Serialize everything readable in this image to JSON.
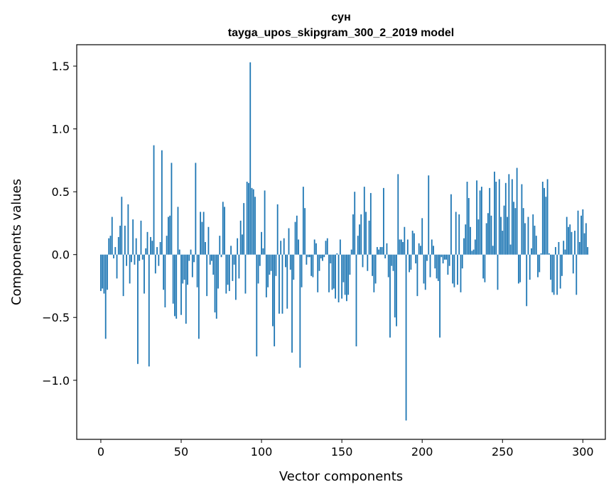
{
  "chart_data": {
    "type": "bar",
    "title": "сун",
    "subtitle": "tayga_upos_skipgram_300_2_2019 model",
    "xlabel": "Vector components",
    "ylabel": "Components values",
    "xlim": [
      -15,
      314
    ],
    "ylim": [
      -1.47,
      1.67
    ],
    "xticks": [
      0,
      50,
      100,
      150,
      200,
      250,
      300
    ],
    "xtick_labels": [
      "0",
      "50",
      "100",
      "150",
      "200",
      "250",
      "300"
    ],
    "yticks": [
      -1.0,
      -0.5,
      0.0,
      0.5,
      1.0,
      1.5
    ],
    "ytick_labels": [
      "−1.0",
      "−0.5",
      "0.0",
      "0.5",
      "1.0",
      "1.5"
    ],
    "grid": false,
    "bar_color": "#1f77b4",
    "values": [
      -0.29,
      -0.27,
      -0.31,
      -0.67,
      -0.28,
      0.13,
      0.15,
      0.3,
      -0.03,
      0.06,
      -0.19,
      0.14,
      0.23,
      0.46,
      -0.33,
      0.23,
      -0.09,
      0.4,
      -0.23,
      -0.06,
      0.28,
      -0.08,
      0.13,
      -0.87,
      -0.05,
      0.27,
      -0.04,
      -0.31,
      0.05,
      0.18,
      -0.89,
      0.14,
      0.11,
      0.87,
      -0.15,
      0.06,
      -0.09,
      0.1,
      0.83,
      -0.28,
      -0.42,
      0.15,
      0.3,
      0.31,
      0.73,
      -0.39,
      -0.49,
      -0.51,
      0.38,
      0.04,
      -0.48,
      -0.23,
      -0.2,
      -0.55,
      -0.24,
      -0.05,
      0.04,
      -0.18,
      -0.06,
      0.73,
      -0.26,
      -0.67,
      0.34,
      0.26,
      0.34,
      0.1,
      -0.33,
      0.22,
      -0.08,
      -0.05,
      -0.16,
      -0.46,
      -0.51,
      -0.27,
      0.15,
      -0.02,
      0.42,
      0.38,
      -0.31,
      -0.24,
      -0.29,
      0.07,
      -0.21,
      -0.08,
      -0.36,
      0.13,
      -0.19,
      0.27,
      0.16,
      0.41,
      -0.31,
      0.58,
      0.57,
      1.53,
      0.53,
      0.52,
      0.46,
      -0.81,
      -0.23,
      -0.09,
      0.18,
      0.05,
      0.51,
      -0.34,
      -0.26,
      -0.16,
      -0.13,
      -0.57,
      -0.73,
      -0.17,
      0.4,
      -0.47,
      0.11,
      -0.47,
      0.13,
      -0.1,
      -0.43,
      0.21,
      -0.12,
      -0.78,
      -0.2,
      0.26,
      0.31,
      0.12,
      -0.9,
      -0.26,
      0.54,
      0.37,
      -0.08,
      -0.02,
      -0.02,
      -0.17,
      -0.18,
      0.12,
      0.09,
      -0.3,
      -0.13,
      -0.03,
      -0.05,
      -0.02,
      0.11,
      0.13,
      -0.3,
      -0.07,
      -0.28,
      -0.27,
      -0.35,
      0.01,
      -0.38,
      0.12,
      -0.35,
      -0.22,
      -0.32,
      -0.37,
      -0.32,
      -0.16,
      0.04,
      0.32,
      0.5,
      -0.73,
      0.15,
      0.24,
      0.32,
      -0.1,
      0.54,
      0.34,
      -0.13,
      0.27,
      0.49,
      -0.17,
      -0.3,
      -0.23,
      0.06,
      0.04,
      0.06,
      0.06,
      0.53,
      -0.03,
      0.09,
      -0.18,
      -0.66,
      -0.09,
      -0.13,
      -0.5,
      -0.57,
      0.64,
      0.12,
      0.12,
      0.1,
      0.22,
      -1.32,
      0.12,
      -0.14,
      -0.12,
      0.19,
      0.17,
      -0.07,
      -0.33,
      0.09,
      0.07,
      0.29,
      -0.23,
      -0.28,
      -0.05,
      0.63,
      -0.18,
      0.12,
      0.07,
      -0.11,
      -0.19,
      -0.21,
      -0.66,
      -0.02,
      -0.07,
      -0.04,
      -0.04,
      -0.16,
      -0.09,
      0.48,
      -0.23,
      -0.26,
      0.34,
      -0.24,
      0.32,
      -0.3,
      -0.11,
      0.13,
      0.24,
      0.58,
      0.45,
      0.22,
      0.03,
      0.04,
      0.12,
      0.59,
      0.28,
      0.51,
      0.54,
      -0.19,
      -0.22,
      0.25,
      0.33,
      0.53,
      0.31,
      0.07,
      0.66,
      0.58,
      -0.28,
      0.6,
      0.3,
      0.19,
      0.39,
      0.57,
      0.3,
      0.64,
      0.08,
      0.6,
      0.42,
      0.37,
      0.69,
      -0.23,
      -0.22,
      0.56,
      0.37,
      0.25,
      -0.41,
      0.3,
      -0.2,
      0.05,
      0.32,
      0.23,
      0.15,
      -0.18,
      -0.14,
      0.01,
      0.58,
      0.53,
      0.46,
      0.6,
      0.01,
      -0.2,
      -0.3,
      -0.32,
      0.06,
      -0.32,
      0.1,
      -0.27,
      -0.17,
      0.11,
      0.04,
      0.3,
      0.22,
      0.24,
      0.18,
      -0.15,
      0.19,
      -0.32,
      0.35,
      0.1,
      0.31,
      0.36,
      0.17,
      0.25,
      0.06
    ]
  }
}
